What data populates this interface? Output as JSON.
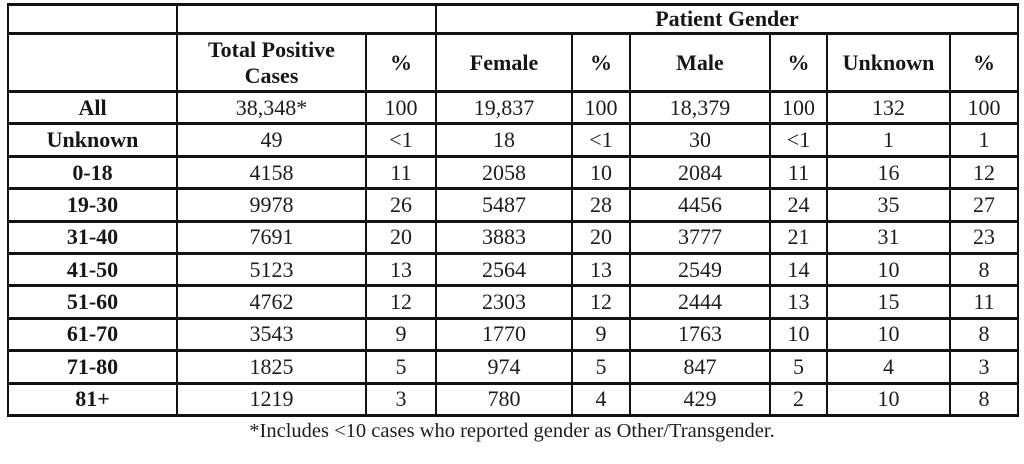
{
  "table": {
    "top_header": {
      "patient_gender_label": "Patient Gender"
    },
    "columns": [
      {
        "label": ""
      },
      {
        "label": "Total Positive Cases"
      },
      {
        "label": "%"
      },
      {
        "label": "Female"
      },
      {
        "label": "%"
      },
      {
        "label": "Male"
      },
      {
        "label": "%"
      },
      {
        "label": "Unknown"
      },
      {
        "label": "%"
      }
    ],
    "rows": [
      {
        "label": "All",
        "values": [
          "38,348*",
          "100",
          "19,837",
          "100",
          "18,379",
          "100",
          "132",
          "100"
        ]
      },
      {
        "label": "Unknown",
        "values": [
          "49",
          "<1",
          "18",
          "<1",
          "30",
          "<1",
          "1",
          "1"
        ]
      },
      {
        "label": "0-18",
        "values": [
          "4158",
          "11",
          "2058",
          "10",
          "2084",
          "11",
          "16",
          "12"
        ]
      },
      {
        "label": "19-30",
        "values": [
          "9978",
          "26",
          "5487",
          "28",
          "4456",
          "24",
          "35",
          "27"
        ]
      },
      {
        "label": "31-40",
        "values": [
          "7691",
          "20",
          "3883",
          "20",
          "3777",
          "21",
          "31",
          "23"
        ]
      },
      {
        "label": "41-50",
        "values": [
          "5123",
          "13",
          "2564",
          "13",
          "2549",
          "14",
          "10",
          "8"
        ]
      },
      {
        "label": "51-60",
        "values": [
          "4762",
          "12",
          "2303",
          "12",
          "2444",
          "13",
          "15",
          "11"
        ]
      },
      {
        "label": "61-70",
        "values": [
          "3543",
          "9",
          "1770",
          "9",
          "1763",
          "10",
          "10",
          "8"
        ]
      },
      {
        "label": "71-80",
        "values": [
          "1825",
          "5",
          "974",
          "5",
          "847",
          "5",
          "4",
          "3"
        ]
      },
      {
        "label": "81+",
        "values": [
          "1219",
          "3",
          "780",
          "4",
          "429",
          "2",
          "10",
          "8"
        ]
      }
    ],
    "footnote": "*Includes <10 cases who reported gender as Other/Transgender."
  }
}
